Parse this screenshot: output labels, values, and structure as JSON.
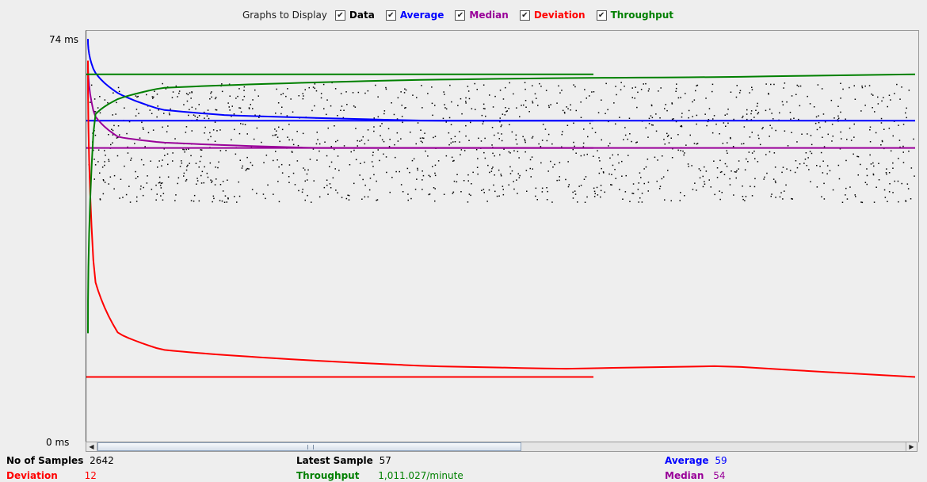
{
  "legend": {
    "title": "Graphs to Display",
    "items": [
      {
        "key": "data",
        "label": "Data",
        "checked": true,
        "color": "#000000"
      },
      {
        "key": "average",
        "label": "Average",
        "checked": true,
        "color": "#0000ff"
      },
      {
        "key": "median",
        "label": "Median",
        "checked": true,
        "color": "#990099"
      },
      {
        "key": "deviation",
        "label": "Deviation",
        "checked": true,
        "color": "#ff0000"
      },
      {
        "key": "throughput",
        "label": "Throughput",
        "checked": true,
        "color": "#008000"
      }
    ]
  },
  "axis": {
    "y_max_label": "74  ms",
    "y_min_label": "0  ms"
  },
  "stats": {
    "samples_label": "No of Samples",
    "samples_value": "2642",
    "deviation_label": "Deviation",
    "deviation_value": "12",
    "latest_label": "Latest Sample",
    "latest_value": "57",
    "throughput_label": "Throughput",
    "throughput_value": "1,011.027/minute",
    "average_label": "Average",
    "average_value": "59",
    "median_label": "Median",
    "median_value": "54"
  },
  "chart_data": {
    "type": "scatter",
    "ylim": [
      0,
      74
    ],
    "final_values": {
      "average": 59,
      "median": 54,
      "deviation": 12,
      "throughput_per_minute": 1011.027,
      "latest_sample": 57,
      "samples": 2642
    },
    "series": [
      {
        "name": "Average",
        "color": "#0000ff",
        "values": [
          74,
          68,
          64,
          61,
          60,
          59.5,
          59,
          59,
          59,
          59
        ]
      },
      {
        "name": "Median",
        "color": "#990099",
        "values": [
          70,
          60,
          56,
          55,
          54.5,
          54,
          54,
          54,
          54,
          54
        ]
      },
      {
        "name": "Deviation",
        "color": "#ff0000",
        "values": [
          70,
          30,
          20,
          17,
          16,
          15,
          14,
          13.5,
          14,
          12
        ]
      },
      {
        "name": "Throughput",
        "color": "#008000",
        "values": [
          20,
          60,
          63,
          65,
          65.5,
          66,
          66.5,
          66.8,
          67,
          67.5
        ]
      }
    ]
  }
}
